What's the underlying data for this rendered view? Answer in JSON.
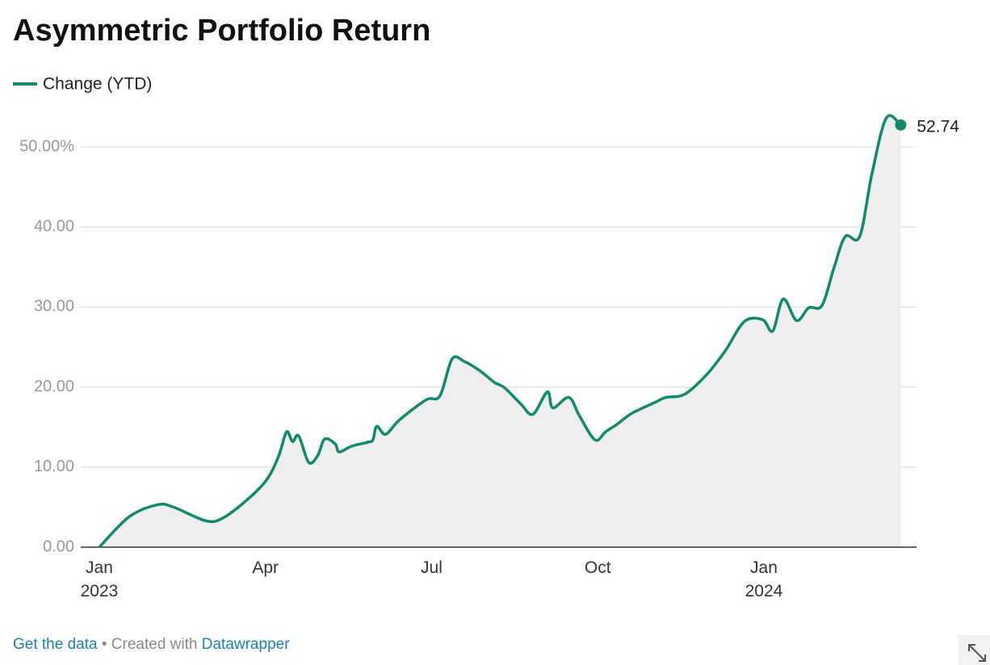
{
  "chart_data": {
    "type": "line",
    "title": "Asymmetric Portfolio Return",
    "x": [
      0,
      0.54,
      1.05,
      1.34,
      1.92,
      2.22,
      2.65,
      3.02,
      3.24,
      3.38,
      3.49,
      3.6,
      3.78,
      3.94,
      4.07,
      4.26,
      4.33,
      4.55,
      4.84,
      4.94,
      5.01,
      5.17,
      5.42,
      5.9,
      6.15,
      6.37,
      6.59,
      6.88,
      7.13,
      7.32,
      7.61,
      7.83,
      8.09,
      8.19,
      8.48,
      8.67,
      8.95,
      9.14,
      9.36,
      9.61,
      10.04,
      10.23,
      10.57,
      10.96,
      11.3,
      11.65,
      11.98,
      12.16,
      12.35,
      12.59,
      12.81,
      13.05,
      13.27,
      13.47,
      13.73,
      13.95,
      14.21,
      14.47
    ],
    "series": [
      {
        "name": "Change (YTD)",
        "color": "#0f8a6c",
        "values": [
          0,
          3.8,
          5.3,
          5.0,
          3.3,
          3.6,
          5.8,
          8.4,
          11.4,
          14.4,
          13.2,
          13.9,
          10.6,
          11.4,
          13.5,
          12.9,
          11.9,
          12.6,
          13.1,
          13.4,
          15.1,
          14.1,
          15.9,
          18.4,
          18.9,
          23.5,
          23.2,
          22.0,
          20.6,
          19.9,
          17.9,
          16.6,
          19.4,
          17.4,
          18.7,
          16.4,
          13.4,
          14.4,
          15.4,
          16.7,
          18.1,
          18.7,
          19.1,
          21.5,
          24.5,
          28.2,
          28.4,
          27.0,
          31.0,
          28.3,
          29.9,
          30.2,
          35.0,
          38.8,
          38.8,
          46.6,
          53.6,
          52.74
        ]
      }
    ],
    "xlim": [
      -0.335,
      14.756
    ],
    "xticks": [
      {
        "value": 0,
        "label": "Jan 2023"
      },
      {
        "value": 3,
        "label": "Apr"
      },
      {
        "value": 6,
        "label": "Jul"
      },
      {
        "value": 9,
        "label": "Oct"
      },
      {
        "value": 12,
        "label": "Jan 2024"
      }
    ],
    "ylim": [
      0,
      55
    ],
    "yticks": [
      {
        "value": 0,
        "label": "0.00"
      },
      {
        "value": 10,
        "label": "10.00"
      },
      {
        "value": 20,
        "label": "20.00"
      },
      {
        "value": 30,
        "label": "30.00"
      },
      {
        "value": 40,
        "label": "40.00"
      },
      {
        "value": 50,
        "label": "50.00%"
      }
    ],
    "grid": true,
    "area_fill": "#efefef"
  },
  "footer": {
    "data_link": "Get the data",
    "created": "Created with",
    "tool": "Datawrapper"
  }
}
